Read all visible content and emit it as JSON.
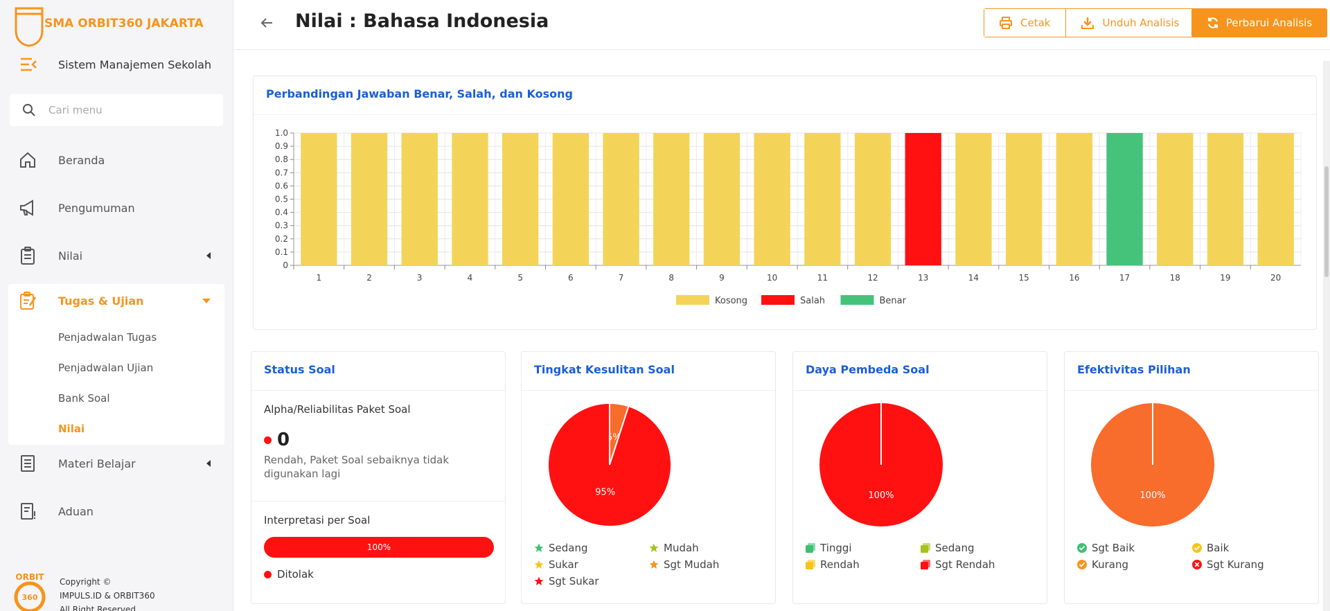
{
  "app": {
    "school_name": "SMA ORBIT360 JAKARTA",
    "subtitle": "Sistem Manajemen Sekolah",
    "search_placeholder": "Cari menu"
  },
  "sidebar": {
    "items": [
      {
        "label": "Beranda",
        "icon": "home-icon"
      },
      {
        "label": "Pengumuman",
        "icon": "megaphone-icon"
      },
      {
        "label": "Nilai",
        "icon": "clipboard-icon"
      },
      {
        "label": "Tugas & Ujian",
        "icon": "clipboard-edit-icon"
      },
      {
        "label": "Materi Belajar",
        "icon": "document-icon"
      },
      {
        "label": "Aduan",
        "icon": "complaint-icon"
      }
    ],
    "sub_items": [
      "Penjadwalan Tugas",
      "Penjadwalan Ujian",
      "Bank Soal",
      "Nilai"
    ],
    "footer_logo_top": "ORBIT",
    "footer_logo_bottom": "360",
    "footer_lines": [
      "Copyright ©",
      "IMPULS.ID & ORBIT360",
      "All Right Reserved"
    ]
  },
  "header": {
    "title": "Nilai : Bahasa Indonesia",
    "cetak": "Cetak",
    "unduh": "Unduh Analisis",
    "perbarui": "Perbarui Analisis"
  },
  "chart_card": {
    "title": "Perbandingan Jawaban Benar, Salah, dan Kosong"
  },
  "chart_data": {
    "type": "bar",
    "stacked": true,
    "categories": [
      "1",
      "2",
      "3",
      "4",
      "5",
      "6",
      "7",
      "8",
      "9",
      "10",
      "11",
      "12",
      "13",
      "14",
      "15",
      "16",
      "17",
      "18",
      "19",
      "20"
    ],
    "series": [
      {
        "name": "Kosong",
        "color": "#f4d458",
        "values": [
          1,
          1,
          1,
          1,
          1,
          1,
          1,
          1,
          1,
          1,
          1,
          1,
          0,
          1,
          1,
          1,
          0,
          1,
          1,
          1
        ]
      },
      {
        "name": "Salah",
        "color": "#ff1111",
        "values": [
          0,
          0,
          0,
          0,
          0,
          0,
          0,
          0,
          0,
          0,
          0,
          0,
          1,
          0,
          0,
          0,
          0,
          0,
          0,
          0
        ]
      },
      {
        "name": "Benar",
        "color": "#45c37a",
        "values": [
          0,
          0,
          0,
          0,
          0,
          0,
          0,
          0,
          0,
          0,
          0,
          0,
          0,
          0,
          0,
          0,
          1,
          0,
          0,
          0
        ]
      }
    ],
    "y_ticks": [
      "0",
      "0.1",
      "0.2",
      "0.3",
      "0.4",
      "0.5",
      "0.6",
      "0.7",
      "0.8",
      "0.9",
      "1.0"
    ],
    "ylim": [
      0,
      1
    ],
    "legend_position": "bottom",
    "grid": true
  },
  "status_soal": {
    "title": "Status Soal",
    "alpha_label": "Alpha/Reliabilitas Paket Soal",
    "alpha_value": "0",
    "alpha_desc": "Rendah, Paket Soal sebaiknya tidak digunakan lagi",
    "interpretasi_label": "Interpretasi per Soal",
    "progress_label": "100%",
    "progress_value": 100,
    "ditolak": "Ditolak"
  },
  "tingkat_kesulitan": {
    "title": "Tingkat Kesulitan Soal",
    "slices": [
      {
        "label": "5%",
        "value": 5,
        "color": "#f86c2c"
      },
      {
        "label": "95%",
        "value": 95,
        "color": "#ff1111"
      }
    ],
    "legend": [
      {
        "label": "Sedang",
        "color": "#3fbf73",
        "icon": "star-icon"
      },
      {
        "label": "Mudah",
        "color": "#a5c21e",
        "icon": "star-icon"
      },
      {
        "label": "Sukar",
        "color": "#f5c518",
        "icon": "star-icon"
      },
      {
        "label": "Sgt Mudah",
        "color": "#f7941d",
        "icon": "star-icon"
      },
      {
        "label": "Sgt Sukar",
        "color": "#ff1111",
        "icon": "star-icon"
      }
    ]
  },
  "daya_pembeda": {
    "title": "Daya Pembeda Soal",
    "slices": [
      {
        "label": "100%",
        "value": 100,
        "color": "#ff1111"
      }
    ],
    "legend": [
      {
        "label": "Tinggi",
        "color": "#3fbf73",
        "icon": "copy-icon"
      },
      {
        "label": "Sedang",
        "color": "#a5c21e",
        "icon": "copy-icon"
      },
      {
        "label": "Rendah",
        "color": "#f5c518",
        "icon": "copy-icon"
      },
      {
        "label": "Sgt Rendah",
        "color": "#ff1111",
        "icon": "copy-icon"
      }
    ]
  },
  "efektivitas": {
    "title": "Efektivitas Pilihan",
    "slices": [
      {
        "label": "100%",
        "value": 100,
        "color": "#f86c2c"
      }
    ],
    "legend": [
      {
        "label": "Sgt Baik",
        "color": "#3fbf73",
        "icon": "check-circle-icon"
      },
      {
        "label": "Baik",
        "color": "#f5c518",
        "icon": "check-circle-icon"
      },
      {
        "label": "Kurang",
        "color": "#f7941d",
        "icon": "check-circle-icon"
      },
      {
        "label": "Sgt Kurang",
        "color": "#ff1111",
        "icon": "x-circle-icon"
      }
    ]
  }
}
